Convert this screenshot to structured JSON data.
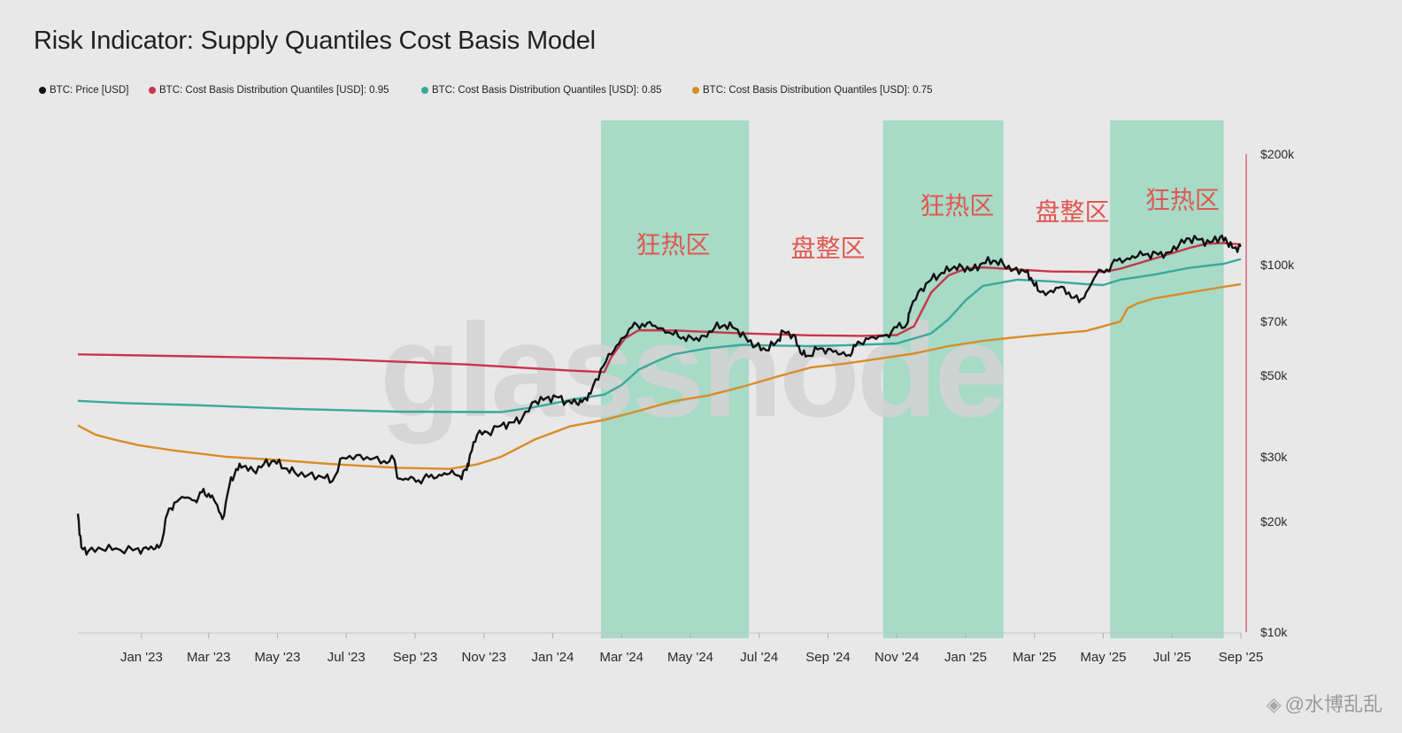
{
  "chart_data": {
    "type": "line",
    "title": "Risk Indicator: Supply Quantiles Cost Basis Model",
    "y_scale": "log",
    "ylim": [
      10000,
      200000
    ],
    "y_ticks": [
      {
        "value": 200000,
        "label": "$200k"
      },
      {
        "value": 100000,
        "label": "$100k"
      },
      {
        "value": 70000,
        "label": "$70k"
      },
      {
        "value": 50000,
        "label": "$50k"
      },
      {
        "value": 30000,
        "label": "$30k"
      },
      {
        "value": 20000,
        "label": "$20k"
      },
      {
        "value": 10000,
        "label": "$10k"
      }
    ],
    "x_ticks": [
      {
        "t": 0.55,
        "label": "Jan '23"
      },
      {
        "t": 2.5,
        "label": "Mar '23"
      },
      {
        "t": 4.5,
        "label": "May '23"
      },
      {
        "t": 6.5,
        "label": "Jul '23"
      },
      {
        "t": 8.5,
        "label": "Sep '23"
      },
      {
        "t": 10.5,
        "label": "Nov '23"
      },
      {
        "t": 12.5,
        "label": "Jan '24"
      },
      {
        "t": 14.5,
        "label": "Mar '24"
      },
      {
        "t": 16.5,
        "label": "May '24"
      },
      {
        "t": 18.5,
        "label": "Jul '24"
      },
      {
        "t": 20.5,
        "label": "Sep '24"
      },
      {
        "t": 22.5,
        "label": "Nov '24"
      },
      {
        "t": 24.5,
        "label": "Jan '25"
      },
      {
        "t": 26.5,
        "label": "Mar '25"
      },
      {
        "t": 28.5,
        "label": "May '25"
      },
      {
        "t": 30.5,
        "label": "Jul '25"
      },
      {
        "t": 32.5,
        "label": "Sep '25"
      }
    ],
    "xlim": [
      -1.3,
      32.5
    ],
    "x_unit": "months since mid-Dec 2022",
    "legend_position": "top-left",
    "series": [
      {
        "name": "BTC: Price [USD]",
        "color": "#111111",
        "points": [
          [
            -1.3,
            21000
          ],
          [
            -1.2,
            17000
          ],
          [
            -1.0,
            16600
          ],
          [
            -0.6,
            16800
          ],
          [
            -0.2,
            16900
          ],
          [
            0.3,
            16700
          ],
          [
            0.6,
            16900
          ],
          [
            0.9,
            16800
          ],
          [
            1.1,
            17200
          ],
          [
            1.3,
            21000
          ],
          [
            1.5,
            22500
          ],
          [
            1.8,
            23200
          ],
          [
            2.1,
            22800
          ],
          [
            2.3,
            24000
          ],
          [
            2.5,
            23800
          ],
          [
            2.7,
            22500
          ],
          [
            2.9,
            20300
          ],
          [
            3.1,
            25000
          ],
          [
            3.3,
            27800
          ],
          [
            3.5,
            28200
          ],
          [
            3.8,
            27500
          ],
          [
            4.1,
            28600
          ],
          [
            4.4,
            29300
          ],
          [
            4.7,
            27900
          ],
          [
            5.0,
            27200
          ],
          [
            5.4,
            26800
          ],
          [
            5.8,
            26400
          ],
          [
            6.1,
            25800
          ],
          [
            6.4,
            29800
          ],
          [
            6.8,
            30300
          ],
          [
            7.2,
            29500
          ],
          [
            7.6,
            29200
          ],
          [
            7.9,
            29400
          ],
          [
            8.0,
            26200
          ],
          [
            8.3,
            26000
          ],
          [
            8.6,
            25900
          ],
          [
            8.9,
            26400
          ],
          [
            9.2,
            26800
          ],
          [
            9.5,
            27000
          ],
          [
            9.8,
            26600
          ],
          [
            10.0,
            27600
          ],
          [
            10.1,
            30500
          ],
          [
            10.3,
            34400
          ],
          [
            10.6,
            35000
          ],
          [
            11.0,
            36500
          ],
          [
            11.3,
            37200
          ],
          [
            11.6,
            38000
          ],
          [
            12.0,
            42500
          ],
          [
            12.3,
            43300
          ],
          [
            12.6,
            43700
          ],
          [
            12.9,
            42400
          ],
          [
            13.2,
            41800
          ],
          [
            13.4,
            43000
          ],
          [
            13.6,
            44500
          ],
          [
            13.9,
            52000
          ],
          [
            14.2,
            57000
          ],
          [
            14.5,
            63000
          ],
          [
            14.8,
            67500
          ],
          [
            15.1,
            69000
          ],
          [
            15.4,
            68200
          ],
          [
            15.7,
            67000
          ],
          [
            16.0,
            64500
          ],
          [
            16.3,
            63500
          ],
          [
            16.6,
            62300
          ],
          [
            16.9,
            64000
          ],
          [
            17.2,
            67200
          ],
          [
            17.5,
            68500
          ],
          [
            17.8,
            67000
          ],
          [
            18.1,
            63500
          ],
          [
            18.4,
            60000
          ],
          [
            18.7,
            58500
          ],
          [
            19.0,
            61500
          ],
          [
            19.2,
            65800
          ],
          [
            19.5,
            64500
          ],
          [
            19.7,
            57500
          ],
          [
            19.9,
            56500
          ],
          [
            20.2,
            58800
          ],
          [
            20.5,
            59000
          ],
          [
            20.8,
            57000
          ],
          [
            21.1,
            56800
          ],
          [
            21.3,
            60000
          ],
          [
            21.6,
            63000
          ],
          [
            21.9,
            62800
          ],
          [
            22.2,
            64500
          ],
          [
            22.5,
            67500
          ],
          [
            22.8,
            69000
          ],
          [
            22.9,
            76000
          ],
          [
            23.2,
            86000
          ],
          [
            23.5,
            91000
          ],
          [
            23.8,
            95000
          ],
          [
            24.1,
            97500
          ],
          [
            24.4,
            98500
          ],
          [
            24.7,
            97000
          ],
          [
            25.0,
            101000
          ],
          [
            25.3,
            102500
          ],
          [
            25.6,
            100000
          ],
          [
            25.9,
            97000
          ],
          [
            26.2,
            96000
          ],
          [
            26.4,
            92000
          ],
          [
            26.6,
            85000
          ],
          [
            26.9,
            84000
          ],
          [
            27.2,
            86500
          ],
          [
            27.5,
            84000
          ],
          [
            27.8,
            79000
          ],
          [
            28.0,
            84000
          ],
          [
            28.3,
            94000
          ],
          [
            28.6,
            97000
          ],
          [
            28.9,
            102500
          ],
          [
            29.2,
            104000
          ],
          [
            29.5,
            105500
          ],
          [
            29.8,
            107000
          ],
          [
            30.1,
            106500
          ],
          [
            30.4,
            108000
          ],
          [
            30.7,
            113000
          ],
          [
            31.0,
            117800
          ],
          [
            31.3,
            117000
          ],
          [
            31.6,
            115000
          ],
          [
            31.9,
            119000
          ],
          [
            32.1,
            115000
          ],
          [
            32.3,
            111000
          ],
          [
            32.5,
            112000
          ]
        ]
      },
      {
        "name": "BTC: Cost Basis Distribution Quantiles [USD]: 0.95",
        "color": "#c8364a",
        "points": [
          [
            -1.3,
            57000
          ],
          [
            2.0,
            56300
          ],
          [
            6.0,
            55400
          ],
          [
            10.0,
            53500
          ],
          [
            13.0,
            51500
          ],
          [
            14.0,
            51000
          ],
          [
            14.2,
            56000
          ],
          [
            14.6,
            63000
          ],
          [
            15.0,
            66300
          ],
          [
            16.0,
            66200
          ],
          [
            18.0,
            65000
          ],
          [
            20.0,
            64200
          ],
          [
            21.5,
            64000
          ],
          [
            22.5,
            64300
          ],
          [
            23.0,
            68000
          ],
          [
            23.5,
            84000
          ],
          [
            24.0,
            93500
          ],
          [
            24.5,
            97500
          ],
          [
            25.0,
            98300
          ],
          [
            26.0,
            97000
          ],
          [
            27.0,
            95800
          ],
          [
            28.5,
            95500
          ],
          [
            29.0,
            97500
          ],
          [
            30.0,
            104000
          ],
          [
            31.0,
            111000
          ],
          [
            31.5,
            114000
          ],
          [
            32.0,
            114500
          ],
          [
            32.5,
            113500
          ]
        ]
      },
      {
        "name": "BTC: Cost Basis Distribution Quantiles [USD]: 0.85",
        "color": "#3aa99a",
        "points": [
          [
            -1.3,
            42600
          ],
          [
            0.0,
            42000
          ],
          [
            2.0,
            41500
          ],
          [
            5.0,
            40500
          ],
          [
            8.0,
            39800
          ],
          [
            11.0,
            39700
          ],
          [
            12.0,
            41000
          ],
          [
            13.0,
            42800
          ],
          [
            14.0,
            44300
          ],
          [
            14.5,
            47000
          ],
          [
            15.0,
            51800
          ],
          [
            15.5,
            54500
          ],
          [
            16.0,
            57000
          ],
          [
            17.0,
            59200
          ],
          [
            18.0,
            60500
          ],
          [
            19.0,
            60200
          ],
          [
            20.0,
            60000
          ],
          [
            21.0,
            60300
          ],
          [
            22.5,
            61000
          ],
          [
            23.5,
            65000
          ],
          [
            24.0,
            71000
          ],
          [
            24.5,
            80000
          ],
          [
            25.0,
            87500
          ],
          [
            26.0,
            91000
          ],
          [
            27.0,
            90000
          ],
          [
            28.0,
            88500
          ],
          [
            28.5,
            88000
          ],
          [
            29.0,
            91000
          ],
          [
            30.0,
            94000
          ],
          [
            31.0,
            98000
          ],
          [
            32.0,
            100500
          ],
          [
            32.5,
            103500
          ]
        ]
      },
      {
        "name": "BTC: Cost Basis Distribution Quantiles [USD]: 0.75",
        "color": "#d98c26",
        "points": [
          [
            -1.3,
            36500
          ],
          [
            -0.8,
            34500
          ],
          [
            -0.3,
            33500
          ],
          [
            0.5,
            32200
          ],
          [
            1.5,
            31200
          ],
          [
            3.0,
            30000
          ],
          [
            4.5,
            29400
          ],
          [
            6.0,
            28700
          ],
          [
            8.0,
            28000
          ],
          [
            9.5,
            27800
          ],
          [
            10.3,
            28600
          ],
          [
            11.0,
            30000
          ],
          [
            12.0,
            33500
          ],
          [
            13.0,
            36300
          ],
          [
            14.0,
            37800
          ],
          [
            15.0,
            40000
          ],
          [
            16.0,
            42500
          ],
          [
            17.0,
            44000
          ],
          [
            18.0,
            46500
          ],
          [
            19.0,
            49500
          ],
          [
            20.0,
            52500
          ],
          [
            21.0,
            53800
          ],
          [
            22.0,
            55500
          ],
          [
            23.0,
            57300
          ],
          [
            24.0,
            60000
          ],
          [
            25.0,
            62000
          ],
          [
            26.0,
            63500
          ],
          [
            27.0,
            64800
          ],
          [
            28.0,
            66000
          ],
          [
            29.0,
            70000
          ],
          [
            29.2,
            76000
          ],
          [
            29.5,
            78500
          ],
          [
            30.0,
            81000
          ],
          [
            31.0,
            84000
          ],
          [
            32.0,
            87000
          ],
          [
            32.5,
            88500
          ]
        ]
      }
    ],
    "shaded_regions": [
      {
        "start": 13.9,
        "end": 18.2,
        "color": "#a3d9c5",
        "label": "狂热区"
      },
      {
        "start": 22.1,
        "end": 25.6,
        "color": "#a3d9c5",
        "label": "狂热区"
      },
      {
        "start": 28.7,
        "end": 32.0,
        "color": "#a3d9c5",
        "label": "狂热区"
      }
    ],
    "annotations": [
      {
        "t": 16.0,
        "value": 107500,
        "text": "狂热区"
      },
      {
        "t": 20.5,
        "value": 105000,
        "text": "盘整区"
      },
      {
        "t": 24.25,
        "value": 137000,
        "text": "狂热区"
      },
      {
        "t": 27.6,
        "value": 132000,
        "text": "盘整区"
      },
      {
        "t": 30.8,
        "value": 142000,
        "text": "狂热区"
      }
    ],
    "watermark": "glassnode"
  },
  "legend": [
    {
      "label": "BTC: Price [USD]",
      "color": "#111111"
    },
    {
      "label": "BTC: Cost Basis Distribution Quantiles [USD]: 0.95",
      "color": "#c8364a"
    },
    {
      "label": "BTC: Cost Basis Distribution Quantiles [USD]: 0.85",
      "color": "#3aa99a"
    },
    {
      "label": "BTC: Cost Basis Distribution Quantiles [USD]: 0.75",
      "color": "#d98c26"
    }
  ],
  "overlay": {
    "user_mark": "@水博乱乱"
  }
}
